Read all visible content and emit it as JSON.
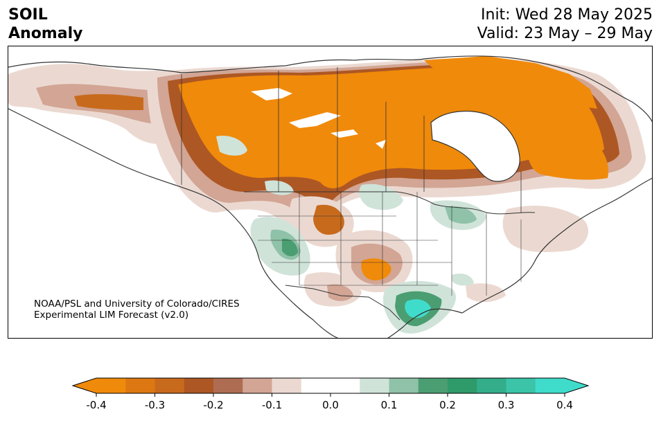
{
  "header": {
    "title_line1": "SOIL",
    "title_line2": "Anomaly",
    "init_text": "Init: Wed 28 May 2025",
    "valid_text": "Valid: 23 May – 29 May"
  },
  "credit": {
    "line1": "NOAA/PSL and University of Colorado/CIRES",
    "line2": "Experimental LIM Forecast (v2.0)"
  },
  "colorbar": {
    "tick_labels": [
      "-0.4",
      "-0.3",
      "-0.2",
      "-0.1",
      "0.0",
      "0.1",
      "0.2",
      "0.3",
      "0.4"
    ],
    "levels": [
      -0.4,
      -0.35,
      -0.3,
      -0.25,
      -0.2,
      -0.15,
      -0.1,
      -0.05,
      0.05,
      0.1,
      0.15,
      0.2,
      0.25,
      0.3,
      0.35,
      0.4
    ],
    "colors": [
      "#f08a0a",
      "#dd7712",
      "#c86a1c",
      "#ad5724",
      "#ae6c52",
      "#d2a594",
      "#ebd9d1",
      "#ffffff",
      "#cfe3d9",
      "#8fc2a8",
      "#4b9e72",
      "#2f9a6a",
      "#33ad8a",
      "#3bc4a8",
      "#40dccb"
    ],
    "extend_low_color": "#f08a0a",
    "extend_high_color": "#40dccb"
  },
  "colors": {
    "dry_strong": "#f08a0a",
    "dry_mid": "#c86a1c",
    "dry_dark": "#ad5724",
    "dry_light": "#d2a594",
    "dry_faint": "#ebd9d1",
    "wet_faint": "#cfe3d9",
    "wet_light": "#8fc2a8",
    "wet_mid": "#4b9e72",
    "wet_strong": "#40dccb",
    "coast": "#333333",
    "lakes": "#ffffff"
  }
}
